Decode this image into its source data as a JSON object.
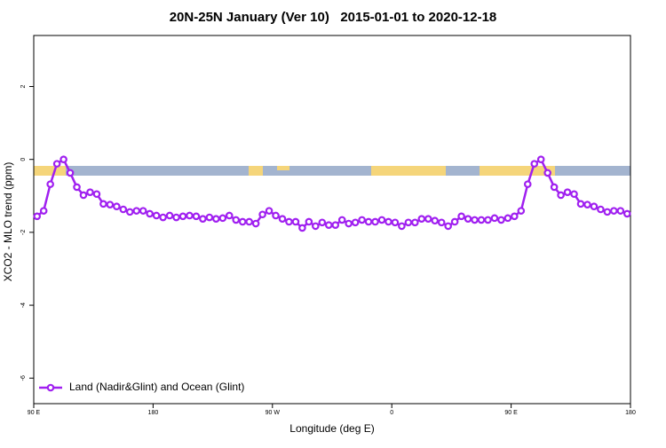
{
  "chart_data": {
    "type": "line",
    "title": "20N-25N January (Ver 10)   2015-01-01 to 2020-12-18",
    "x_label": "Longitude (deg E)",
    "y_label": "XCO2 - MLO trend (ppm)",
    "x": [
      92.5,
      97.5,
      102.5,
      107.5,
      112.5,
      117.5,
      122.5,
      127.5,
      132.5,
      137.5,
      142.5,
      147.5,
      152.5,
      157.5,
      162.5,
      167.5,
      172.5,
      177.5,
      182.5,
      187.5,
      192.5,
      197.5,
      202.5,
      207.5,
      212.5,
      217.5,
      222.5,
      227.5,
      232.5,
      237.5,
      242.5,
      247.5,
      252.5,
      257.5,
      262.5,
      267.5,
      272.5,
      277.5,
      282.5,
      287.5,
      292.5,
      297.5,
      302.5,
      307.5,
      312.5,
      317.5,
      322.5,
      327.5,
      332.5,
      337.5,
      342.5,
      347.5,
      352.5,
      357.5,
      362.5,
      367.5,
      372.5,
      377.5,
      382.5,
      387.5,
      392.5,
      397.5,
      402.5,
      407.5,
      412.5,
      417.5,
      422.5,
      427.5,
      432.5,
      437.5,
      442.5,
      447.5,
      452.5,
      457.5,
      462.5,
      467.5,
      472.5,
      477.5,
      482.5,
      487.5,
      492.5,
      497.5,
      502.5,
      507.5,
      512.5,
      517.5,
      522.5,
      527.5,
      532.5,
      537.5
    ],
    "series": [
      {
        "name": "Land (Nadir&Glint) and Ocean (Glint)",
        "color": "#a020f0",
        "values": [
          -1.56,
          -1.41,
          -0.68,
          -0.12,
          0.0,
          -0.37,
          -0.76,
          -0.98,
          -0.9,
          -0.95,
          -1.22,
          -1.24,
          -1.29,
          -1.37,
          -1.44,
          -1.41,
          -1.41,
          -1.49,
          -1.54,
          -1.59,
          -1.54,
          -1.59,
          -1.56,
          -1.54,
          -1.56,
          -1.63,
          -1.59,
          -1.63,
          -1.61,
          -1.54,
          -1.66,
          -1.71,
          -1.71,
          -1.76,
          -1.51,
          -1.41,
          -1.54,
          -1.63,
          -1.71,
          -1.71,
          -1.88,
          -1.71,
          -1.83,
          -1.73,
          -1.8,
          -1.8,
          -1.66,
          -1.76,
          -1.73,
          -1.66,
          -1.71,
          -1.71,
          -1.66,
          -1.71,
          -1.73,
          -1.83,
          -1.73,
          -1.73,
          -1.63,
          -1.63,
          -1.68,
          -1.73,
          -1.83,
          -1.71,
          -1.56,
          -1.63,
          -1.66,
          -1.66,
          -1.66,
          -1.61,
          -1.66,
          -1.61,
          -1.56,
          -1.41,
          -0.68,
          -0.12,
          0.0,
          -0.37,
          -0.76,
          -0.98,
          -0.9,
          -0.95,
          -1.22,
          -1.24,
          -1.29,
          -1.37,
          -1.44,
          -1.41,
          -1.41,
          -1.49
        ]
      }
    ],
    "xlim": [
      90,
      540
    ],
    "xticks": [
      {
        "value": 90,
        "label": "90 E"
      },
      180,
      {
        "value": 270,
        "label": "90 W"
      },
      {
        "value": 360,
        "label": "0"
      },
      {
        "value": 450,
        "label": "90 E"
      },
      {
        "value": 540,
        "label": "180"
      }
    ],
    "ylim": [
      -6.7,
      3.4
    ],
    "yticks": [
      -6,
      -4,
      -2,
      0,
      2
    ],
    "legend": "bottom-left"
  }
}
